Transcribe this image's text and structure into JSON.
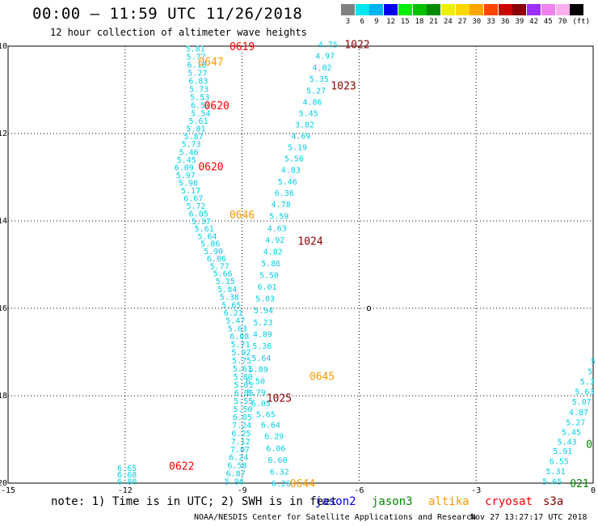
{
  "header": {
    "title": "00:00 – 11:59 UTC 11/26/2018",
    "subtitle": "12 hour collection of altimeter wave heights"
  },
  "legend": {
    "unit": "(ft)",
    "levels": [
      {
        "label": "3",
        "color": "#808080"
      },
      {
        "label": "6",
        "color": "#00e5ee"
      },
      {
        "label": "9",
        "color": "#00b2ee"
      },
      {
        "label": "12",
        "color": "#0000ee"
      },
      {
        "label": "15",
        "color": "#00ee00"
      },
      {
        "label": "18",
        "color": "#00c000"
      },
      {
        "label": "21",
        "color": "#008b00"
      },
      {
        "label": "24",
        "color": "#eeee00"
      },
      {
        "label": "27",
        "color": "#ffd700"
      },
      {
        "label": "30",
        "color": "#ffa500"
      },
      {
        "label": "33",
        "color": "#ff4500"
      },
      {
        "label": "36",
        "color": "#cd0000"
      },
      {
        "label": "39",
        "color": "#8b0000"
      },
      {
        "label": "42",
        "color": "#9b30ff"
      },
      {
        "label": "45",
        "color": "#ee82ee"
      },
      {
        "label": "70",
        "color": "#ffaeee"
      },
      {
        "label": "",
        "color": "#000000"
      }
    ]
  },
  "map": {
    "lon_range": [
      -15,
      0
    ],
    "lat_range": [
      -20,
      -10
    ],
    "lon_ticks": [
      "-15",
      "-12",
      "-9",
      "-6",
      "-3",
      "0"
    ],
    "lat_ticks": [
      "-10",
      "-12",
      "-14",
      "-16",
      "-18",
      "-20"
    ],
    "grid": "dotted",
    "island_glyph": "o",
    "track_a": {
      "color": "#00cfe8",
      "values": [
        "5.81",
        "5.77",
        "6.18",
        "5.27",
        "6.83",
        "5.73",
        "5.53",
        "6.52",
        "5.54",
        "5.61",
        "5.81",
        "5.87",
        "5.73",
        "5.46",
        "5.45",
        "6.09",
        "5.97",
        "5.98",
        "5.17",
        "6.67",
        "5.72",
        "6.05",
        "5.37",
        "5.61",
        "5.64",
        "5.86",
        "5.90",
        "6.06",
        "5.77",
        "5.66",
        "5.15",
        "5.84",
        "5.38",
        "5.65",
        "6.21",
        "5.47",
        "5.63",
        "6.08",
        "5.71",
        "5.92",
        "5.75",
        "5.61",
        "5.80",
        "5.65",
        "6.05",
        "5.55",
        "5.50",
        "6.05",
        "7.24",
        "6.25",
        "7.12",
        "7.07",
        "6.24",
        "6.58",
        "6.87",
        "5.96"
      ]
    },
    "track_b": {
      "color": "#00cfe8",
      "values": [
        "4.75",
        "4.97",
        "4.02",
        "5.35",
        "5.27",
        "4.86",
        "5.45",
        "3.82",
        "4.69",
        "5.19",
        "5.56",
        "4.83",
        "5.46",
        "6.36",
        "4.78",
        "5.59",
        "4.63",
        "4.92",
        "4.82",
        "5.86",
        "5.50",
        "6.01",
        "5.03",
        "5.94",
        "5.23",
        "4.89",
        "5.36",
        "5.64",
        "5.89",
        "6.50",
        "5.79",
        "6.05",
        "5.65",
        "6.64",
        "6.29",
        "6.06",
        "6.60",
        "6.32",
        "6.26"
      ]
    },
    "track_c": {
      "color": "#00cfe8",
      "values": [
        "6.65",
        "6.68",
        "6.80"
      ]
    },
    "track_d": {
      "color": "#00cfe8",
      "values": [
        "5",
        "5",
        "5.3",
        "5.63",
        "5.07",
        "4.87",
        "5.27",
        "5.45",
        "5.43",
        "5.91",
        "6.55",
        "5.31",
        "5.65"
      ]
    },
    "time_labels": [
      {
        "text": "0619",
        "lon": -9.0,
        "lat": -10.0,
        "color": "#ff0000"
      },
      {
        "text": "0647",
        "lon": -9.8,
        "lat": -10.35,
        "color": "#ff9900"
      },
      {
        "text": "0620",
        "lon": -9.65,
        "lat": -11.35,
        "color": "#ff0000"
      },
      {
        "text": "0620",
        "lon": -9.8,
        "lat": -12.75,
        "color": "#ff0000"
      },
      {
        "text": "0646",
        "lon": -9.0,
        "lat": -13.85,
        "color": "#ff9900"
      },
      {
        "text": "0645",
        "lon": -6.95,
        "lat": -17.55,
        "color": "#ff9900"
      },
      {
        "text": "0644",
        "lon": -7.45,
        "lat": -20.0,
        "color": "#ff9900"
      },
      {
        "text": "0622",
        "lon": -10.55,
        "lat": -19.6,
        "color": "#ff0000"
      },
      {
        "text": "1022",
        "lon": -6.05,
        "lat": -9.95,
        "color": "#8b0000"
      },
      {
        "text": "1023",
        "lon": -6.4,
        "lat": -10.9,
        "color": "#8b0000"
      },
      {
        "text": "1024",
        "lon": -7.25,
        "lat": -14.45,
        "color": "#8b0000"
      },
      {
        "text": "1025",
        "lon": -8.05,
        "lat": -18.05,
        "color": "#8b0000"
      },
      {
        "text": "021",
        "lon": -0.35,
        "lat": -20.0,
        "color": "#008b00"
      },
      {
        "text": "0",
        "lon": -0.1,
        "lat": -19.1,
        "color": "#008b00"
      }
    ]
  },
  "footer": {
    "note": "note: 1) Time is in UTC; 2) SWH is in feet",
    "sats": [
      {
        "name": "jason2",
        "color": "#0000ee"
      },
      {
        "name": "jason3",
        "color": "#008b00"
      },
      {
        "name": "altika",
        "color": "#ff9900"
      },
      {
        "name": "cryosat",
        "color": "#ff0000"
      },
      {
        "name": "s3a",
        "color": "#8b0000"
      }
    ],
    "credit": "NOAA/NESDIS Center for Satellite Applications and Research",
    "timestamp": "Nov 27 13:27:17 UTC 2018"
  }
}
